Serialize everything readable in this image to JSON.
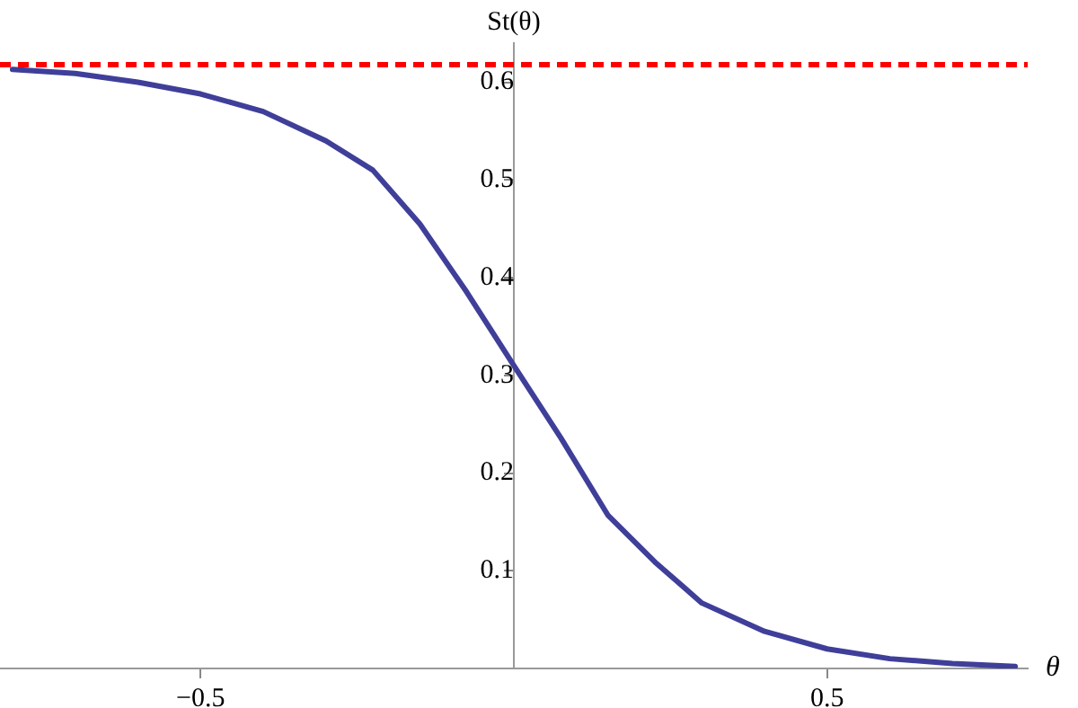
{
  "chart_data": {
    "type": "line",
    "xlabel": "θ",
    "ylabel": "St(θ)",
    "x": [
      -0.8,
      -0.7,
      -0.6,
      -0.5,
      -0.4,
      -0.3,
      -0.225,
      -0.15,
      -0.075,
      0,
      0.075,
      0.15,
      0.225,
      0.3,
      0.4,
      0.5,
      0.6,
      0.7,
      0.8
    ],
    "series": [
      {
        "color": "#3f3f9a",
        "values": [
          0.613,
          0.609,
          0.6,
          0.588,
          0.57,
          0.54,
          0.51,
          0.455,
          0.385,
          0.31,
          0.236,
          0.157,
          0.109,
          0.067,
          0.038,
          0.02,
          0.01,
          0.005,
          0.002
        ]
      }
    ],
    "xlim": [
      -0.82,
      0.82
    ],
    "xticks": [
      -0.5,
      0.5
    ],
    "ylim": [
      0,
      0.64
    ],
    "yticks": [
      0.1,
      0.2,
      0.3,
      0.4,
      0.5,
      0.6
    ],
    "ref_lines": [
      {
        "axis": "y",
        "value": 0.618,
        "color": "#ff0000",
        "line_style": "dashed"
      }
    ],
    "grid": false,
    "legend": false,
    "marker": "none",
    "line_style": "solid"
  }
}
